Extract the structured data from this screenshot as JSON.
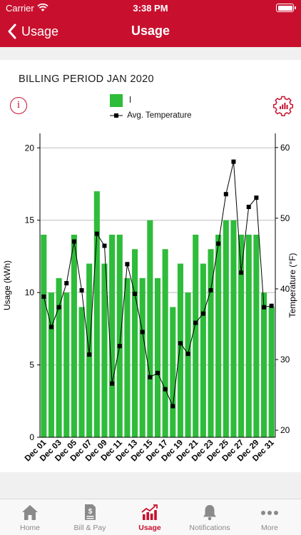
{
  "status_bar": {
    "carrier": "Carrier",
    "time": "3:38 PM"
  },
  "nav": {
    "back_label": "Usage",
    "title": "Usage"
  },
  "billing_period": "BILLING PERIOD JAN 2020",
  "legend": {
    "usage_label": "l",
    "temperature_label": "Avg. Temperature"
  },
  "colors": {
    "brand": "#c8102e",
    "bar": "#2ebc3a",
    "line": "#000000"
  },
  "chart_data": {
    "type": "bar",
    "ylabel": "Usage (kWh)",
    "y2label": "Temperature (°F)",
    "ylim": [
      0,
      21
    ],
    "y2lim": [
      19,
      62
    ],
    "yticks": [
      0,
      5,
      10,
      15,
      20
    ],
    "y2ticks": [
      20,
      30,
      40,
      50,
      60
    ],
    "grid": true,
    "legend_position": "top-center",
    "categories": [
      "Dec 01",
      "Dec 02",
      "Dec 03",
      "Dec 04",
      "Dec 05",
      "Dec 06",
      "Dec 07",
      "Dec 08",
      "Dec 09",
      "Dec 10",
      "Dec 11",
      "Dec 12",
      "Dec 13",
      "Dec 14",
      "Dec 15",
      "Dec 16",
      "Dec 17",
      "Dec 18",
      "Dec 19",
      "Dec 20",
      "Dec 21",
      "Dec 22",
      "Dec 23",
      "Dec 24",
      "Dec 25",
      "Dec 26",
      "Dec 27",
      "Dec 28",
      "Dec 29",
      "Dec 30",
      "Dec 31"
    ],
    "tick_labels": [
      "Dec 01",
      "Dec 03",
      "Dec 05",
      "Dec 07",
      "Dec 09",
      "Dec 11",
      "Dec 13",
      "Dec 15",
      "Dec 17",
      "Dec 19",
      "Dec 21",
      "Dec 23",
      "Dec 25",
      "Dec 27",
      "Dec 29",
      "Dec 31"
    ],
    "usage": [
      14,
      10,
      11,
      10,
      14,
      9,
      12,
      17,
      12,
      14,
      14,
      11,
      13,
      11,
      15,
      11,
      13,
      9,
      12,
      10,
      14,
      12,
      13,
      14,
      15,
      15,
      14,
      14,
      14,
      10,
      9
    ],
    "temperature": [
      38.9,
      34.6,
      37.4,
      40.8,
      46.7,
      39.8,
      30.7,
      47.8,
      46.1,
      26.6,
      31.9,
      43.5,
      39.3,
      33.9,
      27.5,
      28.1,
      25.8,
      23.4,
      32.3,
      30.8,
      35.2,
      36.5,
      39.8,
      46.4,
      53.4,
      58.0,
      42.3,
      51.6,
      52.9,
      37.4,
      37.6
    ]
  },
  "tabs": [
    {
      "label": "Home",
      "icon": "home-icon"
    },
    {
      "label": "Bill & Pay",
      "icon": "bill-icon"
    },
    {
      "label": "Usage",
      "icon": "usage-chart-icon",
      "active": true
    },
    {
      "label": "Notifications",
      "icon": "bell-icon"
    },
    {
      "label": "More",
      "icon": "more-dots-icon"
    }
  ]
}
